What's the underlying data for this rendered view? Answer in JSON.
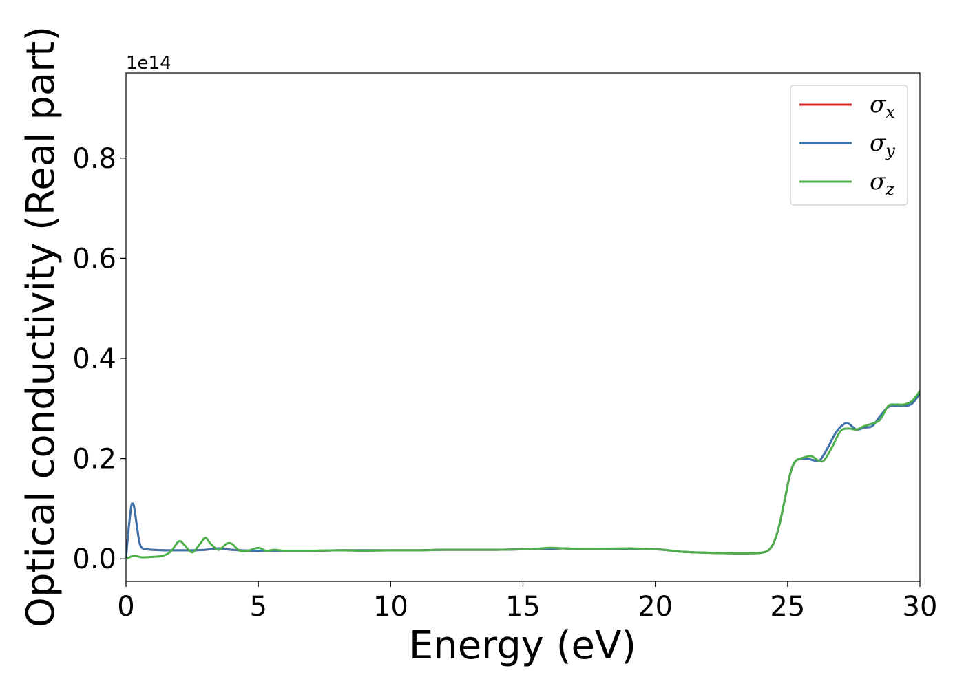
{
  "chart_data": {
    "type": "line",
    "title": "",
    "xlabel": "Energy (eV)",
    "ylabel": "Optical conductivity (Real part)",
    "y_offset_label": "1e14",
    "xlim": [
      0,
      30
    ],
    "ylim": [
      -0.045,
      0.97
    ],
    "xticks": [
      0,
      5,
      10,
      15,
      20,
      25,
      30
    ],
    "yticks": [
      0.0,
      0.2,
      0.4,
      0.6,
      0.8
    ],
    "xtick_labels": [
      "0",
      "5",
      "10",
      "15",
      "20",
      "25",
      "30"
    ],
    "ytick_labels": [
      "0.0",
      "0.2",
      "0.4",
      "0.6",
      "0.8"
    ],
    "grid": false,
    "legend_position": "top-right",
    "series": [
      {
        "name": "σx",
        "base": "σ",
        "sub": "x",
        "color": "#d62728",
        "x": [
          0,
          0.1,
          0.2,
          0.25,
          0.3,
          0.4,
          0.5,
          0.6,
          0.8,
          1,
          1.5,
          2,
          2.5,
          3,
          3.5,
          4,
          5,
          6,
          7,
          8,
          9,
          10,
          11,
          12,
          13,
          14,
          15,
          15.5,
          16,
          16.5,
          17,
          18,
          19,
          20,
          20.5,
          21,
          22,
          23,
          23.5,
          24,
          24.3,
          24.5,
          24.7,
          24.9,
          25.1,
          25.3,
          25.6,
          25.9,
          26.2,
          26.5,
          26.8,
          27.1,
          27.3,
          27.6,
          27.9,
          28.2,
          28.5,
          28.8,
          29.1,
          29.4,
          29.7,
          30
        ],
        "y": [
          0.002,
          0.06,
          0.105,
          0.11,
          0.105,
          0.07,
          0.035,
          0.022,
          0.019,
          0.018,
          0.017,
          0.017,
          0.017,
          0.018,
          0.021,
          0.018,
          0.016,
          0.016,
          0.016,
          0.017,
          0.017,
          0.017,
          0.017,
          0.018,
          0.018,
          0.018,
          0.019,
          0.02,
          0.02,
          0.021,
          0.02,
          0.02,
          0.02,
          0.019,
          0.017,
          0.014,
          0.012,
          0.011,
          0.011,
          0.012,
          0.018,
          0.035,
          0.07,
          0.12,
          0.17,
          0.195,
          0.2,
          0.198,
          0.196,
          0.22,
          0.25,
          0.268,
          0.27,
          0.258,
          0.262,
          0.265,
          0.285,
          0.303,
          0.305,
          0.305,
          0.31,
          0.33
        ]
      },
      {
        "name": "σy",
        "base": "σ",
        "sub": "y",
        "color": "#3a75b0",
        "x": [
          0,
          0.1,
          0.2,
          0.25,
          0.3,
          0.4,
          0.5,
          0.6,
          0.8,
          1,
          1.5,
          2,
          2.5,
          3,
          3.5,
          4,
          5,
          6,
          7,
          8,
          9,
          10,
          11,
          12,
          13,
          14,
          15,
          15.5,
          16,
          16.5,
          17,
          18,
          19,
          20,
          20.5,
          21,
          22,
          23,
          23.5,
          24,
          24.3,
          24.5,
          24.7,
          24.9,
          25.1,
          25.3,
          25.6,
          25.9,
          26.2,
          26.5,
          26.8,
          27.1,
          27.3,
          27.6,
          27.9,
          28.2,
          28.5,
          28.8,
          29.1,
          29.4,
          29.7,
          30
        ],
        "y": [
          0.002,
          0.06,
          0.105,
          0.11,
          0.105,
          0.07,
          0.035,
          0.022,
          0.019,
          0.018,
          0.017,
          0.017,
          0.017,
          0.018,
          0.021,
          0.018,
          0.016,
          0.016,
          0.016,
          0.017,
          0.017,
          0.017,
          0.017,
          0.018,
          0.018,
          0.018,
          0.019,
          0.02,
          0.02,
          0.021,
          0.02,
          0.02,
          0.02,
          0.019,
          0.017,
          0.014,
          0.012,
          0.011,
          0.011,
          0.012,
          0.018,
          0.035,
          0.07,
          0.12,
          0.17,
          0.195,
          0.2,
          0.198,
          0.196,
          0.22,
          0.25,
          0.268,
          0.27,
          0.258,
          0.262,
          0.265,
          0.285,
          0.303,
          0.305,
          0.305,
          0.31,
          0.33
        ]
      },
      {
        "name": "σz",
        "base": "σ",
        "sub": "z",
        "color": "#4daf4a",
        "x": [
          0,
          0.3,
          0.6,
          1,
          1.4,
          1.7,
          2,
          2.2,
          2.5,
          2.8,
          3,
          3.2,
          3.5,
          3.8,
          4,
          4.3,
          4.6,
          5,
          5.3,
          5.6,
          6,
          6.5,
          7,
          8,
          9,
          10,
          11,
          12,
          13,
          14,
          15,
          15.5,
          16,
          16.5,
          17,
          18,
          19,
          20,
          20.5,
          21,
          22,
          23,
          23.5,
          24,
          24.3,
          24.5,
          24.7,
          24.9,
          25.1,
          25.3,
          25.6,
          25.9,
          26.2,
          26.4,
          26.7,
          27,
          27.3,
          27.6,
          27.9,
          28.2,
          28.5,
          28.8,
          29.1,
          29.4,
          29.7,
          30
        ],
        "y": [
          0.0,
          0.006,
          0.003,
          0.004,
          0.006,
          0.015,
          0.035,
          0.028,
          0.013,
          0.03,
          0.042,
          0.03,
          0.018,
          0.03,
          0.03,
          0.016,
          0.016,
          0.022,
          0.016,
          0.018,
          0.016,
          0.016,
          0.016,
          0.017,
          0.016,
          0.017,
          0.017,
          0.018,
          0.018,
          0.018,
          0.019,
          0.02,
          0.022,
          0.021,
          0.02,
          0.02,
          0.021,
          0.019,
          0.017,
          0.014,
          0.012,
          0.011,
          0.011,
          0.012,
          0.018,
          0.035,
          0.07,
          0.12,
          0.17,
          0.195,
          0.202,
          0.205,
          0.195,
          0.198,
          0.225,
          0.255,
          0.26,
          0.258,
          0.265,
          0.27,
          0.278,
          0.305,
          0.308,
          0.308,
          0.315,
          0.335
        ]
      }
    ]
  }
}
